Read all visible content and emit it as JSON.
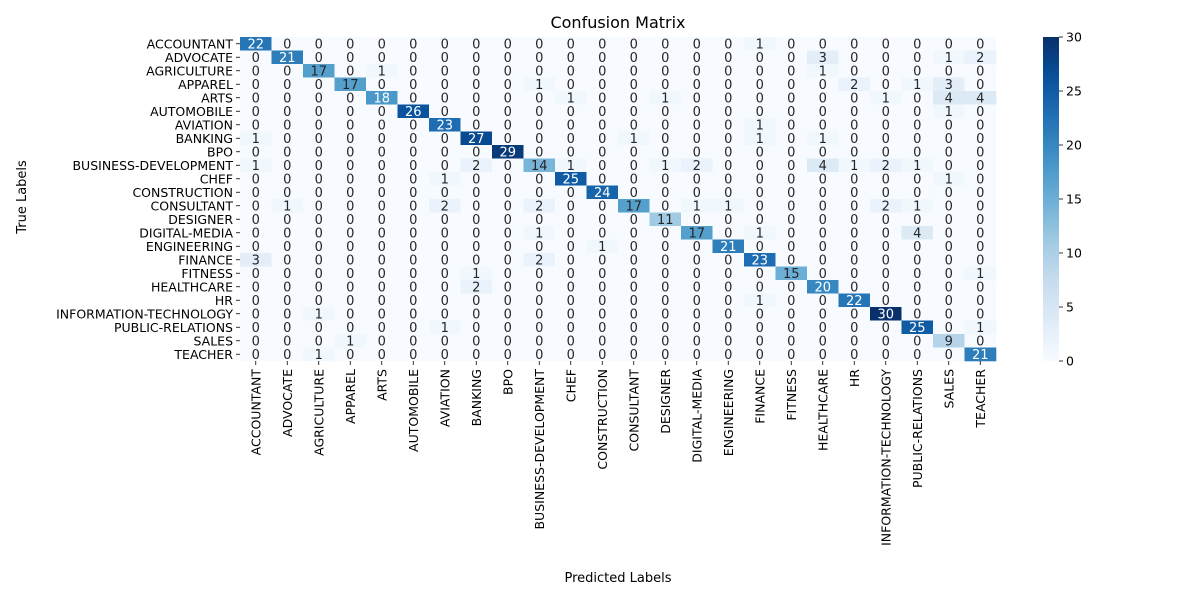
{
  "chart_data": {
    "type": "heatmap",
    "title": "Confusion Matrix",
    "xlabel": "Predicted Labels",
    "ylabel": "True Labels",
    "labels": [
      "ACCOUNTANT",
      "ADVOCATE",
      "AGRICULTURE",
      "APPAREL",
      "ARTS",
      "AUTOMOBILE",
      "AVIATION",
      "BANKING",
      "BPO",
      "BUSINESS-DEVELOPMENT",
      "CHEF",
      "CONSTRUCTION",
      "CONSULTANT",
      "DESIGNER",
      "DIGITAL-MEDIA",
      "ENGINEERING",
      "FINANCE",
      "FITNESS",
      "HEALTHCARE",
      "HR",
      "INFORMATION-TECHNOLOGY",
      "PUBLIC-RELATIONS",
      "SALES",
      "TEACHER"
    ],
    "matrix": [
      [
        22,
        0,
        0,
        0,
        0,
        0,
        0,
        0,
        0,
        0,
        0,
        0,
        0,
        0,
        0,
        0,
        1,
        0,
        0,
        0,
        0,
        0,
        0,
        0
      ],
      [
        0,
        21,
        0,
        0,
        0,
        0,
        0,
        0,
        0,
        0,
        0,
        0,
        0,
        0,
        0,
        0,
        0,
        0,
        3,
        0,
        0,
        0,
        1,
        2
      ],
      [
        0,
        0,
        17,
        0,
        1,
        0,
        0,
        0,
        0,
        0,
        0,
        0,
        0,
        0,
        0,
        0,
        0,
        0,
        1,
        0,
        0,
        0,
        0,
        0
      ],
      [
        0,
        0,
        0,
        17,
        0,
        0,
        0,
        0,
        0,
        1,
        0,
        0,
        0,
        0,
        0,
        0,
        0,
        0,
        0,
        2,
        0,
        1,
        3,
        0
      ],
      [
        0,
        0,
        0,
        0,
        18,
        0,
        0,
        0,
        0,
        0,
        1,
        0,
        0,
        1,
        0,
        0,
        0,
        0,
        0,
        0,
        1,
        0,
        4,
        4
      ],
      [
        0,
        0,
        0,
        0,
        0,
        26,
        0,
        0,
        0,
        0,
        0,
        0,
        0,
        0,
        0,
        0,
        0,
        0,
        0,
        0,
        0,
        0,
        1,
        0
      ],
      [
        0,
        0,
        0,
        0,
        0,
        0,
        23,
        0,
        0,
        0,
        0,
        0,
        0,
        0,
        0,
        0,
        1,
        0,
        0,
        0,
        0,
        0,
        0,
        0
      ],
      [
        1,
        0,
        0,
        0,
        0,
        0,
        0,
        27,
        0,
        0,
        0,
        0,
        1,
        0,
        0,
        0,
        1,
        0,
        1,
        0,
        0,
        0,
        0,
        0
      ],
      [
        0,
        0,
        0,
        0,
        0,
        0,
        0,
        0,
        29,
        0,
        0,
        0,
        0,
        0,
        0,
        0,
        0,
        0,
        0,
        0,
        0,
        0,
        0,
        0
      ],
      [
        1,
        0,
        0,
        0,
        0,
        0,
        0,
        2,
        0,
        14,
        1,
        0,
        0,
        1,
        2,
        0,
        0,
        0,
        4,
        1,
        2,
        1,
        0,
        0
      ],
      [
        0,
        0,
        0,
        0,
        0,
        0,
        1,
        0,
        0,
        0,
        25,
        0,
        0,
        0,
        0,
        0,
        0,
        0,
        0,
        0,
        0,
        0,
        1,
        0
      ],
      [
        0,
        0,
        0,
        0,
        0,
        0,
        0,
        0,
        0,
        0,
        0,
        24,
        0,
        0,
        0,
        0,
        0,
        0,
        0,
        0,
        0,
        0,
        0,
        0
      ],
      [
        0,
        1,
        0,
        0,
        0,
        0,
        2,
        0,
        0,
        2,
        0,
        0,
        17,
        0,
        1,
        1,
        0,
        0,
        0,
        0,
        2,
        1,
        0,
        0
      ],
      [
        0,
        0,
        0,
        0,
        0,
        0,
        0,
        0,
        0,
        0,
        0,
        0,
        0,
        11,
        0,
        0,
        0,
        0,
        0,
        0,
        0,
        0,
        0,
        0
      ],
      [
        0,
        0,
        0,
        0,
        0,
        0,
        0,
        0,
        0,
        1,
        0,
        0,
        0,
        0,
        17,
        0,
        1,
        0,
        0,
        0,
        0,
        4,
        0,
        0
      ],
      [
        0,
        0,
        0,
        0,
        0,
        0,
        0,
        0,
        0,
        0,
        0,
        1,
        0,
        0,
        0,
        21,
        0,
        0,
        0,
        0,
        0,
        0,
        0,
        0
      ],
      [
        3,
        0,
        0,
        0,
        0,
        0,
        0,
        0,
        0,
        2,
        0,
        0,
        0,
        0,
        0,
        0,
        23,
        0,
        0,
        0,
        0,
        0,
        0,
        0
      ],
      [
        0,
        0,
        0,
        0,
        0,
        0,
        0,
        1,
        0,
        0,
        0,
        0,
        0,
        0,
        0,
        0,
        0,
        15,
        0,
        0,
        0,
        0,
        0,
        1
      ],
      [
        0,
        0,
        0,
        0,
        0,
        0,
        0,
        2,
        0,
        0,
        0,
        0,
        0,
        0,
        0,
        0,
        0,
        0,
        20,
        0,
        0,
        0,
        0,
        0
      ],
      [
        0,
        0,
        0,
        0,
        0,
        0,
        0,
        0,
        0,
        0,
        0,
        0,
        0,
        0,
        0,
        0,
        1,
        0,
        0,
        22,
        0,
        0,
        0,
        0
      ],
      [
        0,
        0,
        1,
        0,
        0,
        0,
        0,
        0,
        0,
        0,
        0,
        0,
        0,
        0,
        0,
        0,
        0,
        0,
        0,
        0,
        30,
        0,
        0,
        0
      ],
      [
        0,
        0,
        0,
        0,
        0,
        0,
        1,
        0,
        0,
        0,
        0,
        0,
        0,
        0,
        0,
        0,
        0,
        0,
        0,
        0,
        0,
        25,
        0,
        1
      ],
      [
        0,
        0,
        0,
        1,
        0,
        0,
        0,
        0,
        0,
        0,
        0,
        0,
        0,
        0,
        0,
        0,
        0,
        0,
        0,
        0,
        0,
        0,
        9,
        0
      ],
      [
        0,
        0,
        1,
        0,
        0,
        0,
        0,
        0,
        0,
        0,
        0,
        0,
        0,
        0,
        0,
        0,
        0,
        0,
        0,
        0,
        0,
        0,
        0,
        21
      ]
    ],
    "colorbar": {
      "min": 0,
      "max": 30,
      "ticks": [
        0,
        5,
        10,
        15,
        20,
        25,
        30
      ],
      "colormap": "Blues"
    },
    "grid": false
  }
}
